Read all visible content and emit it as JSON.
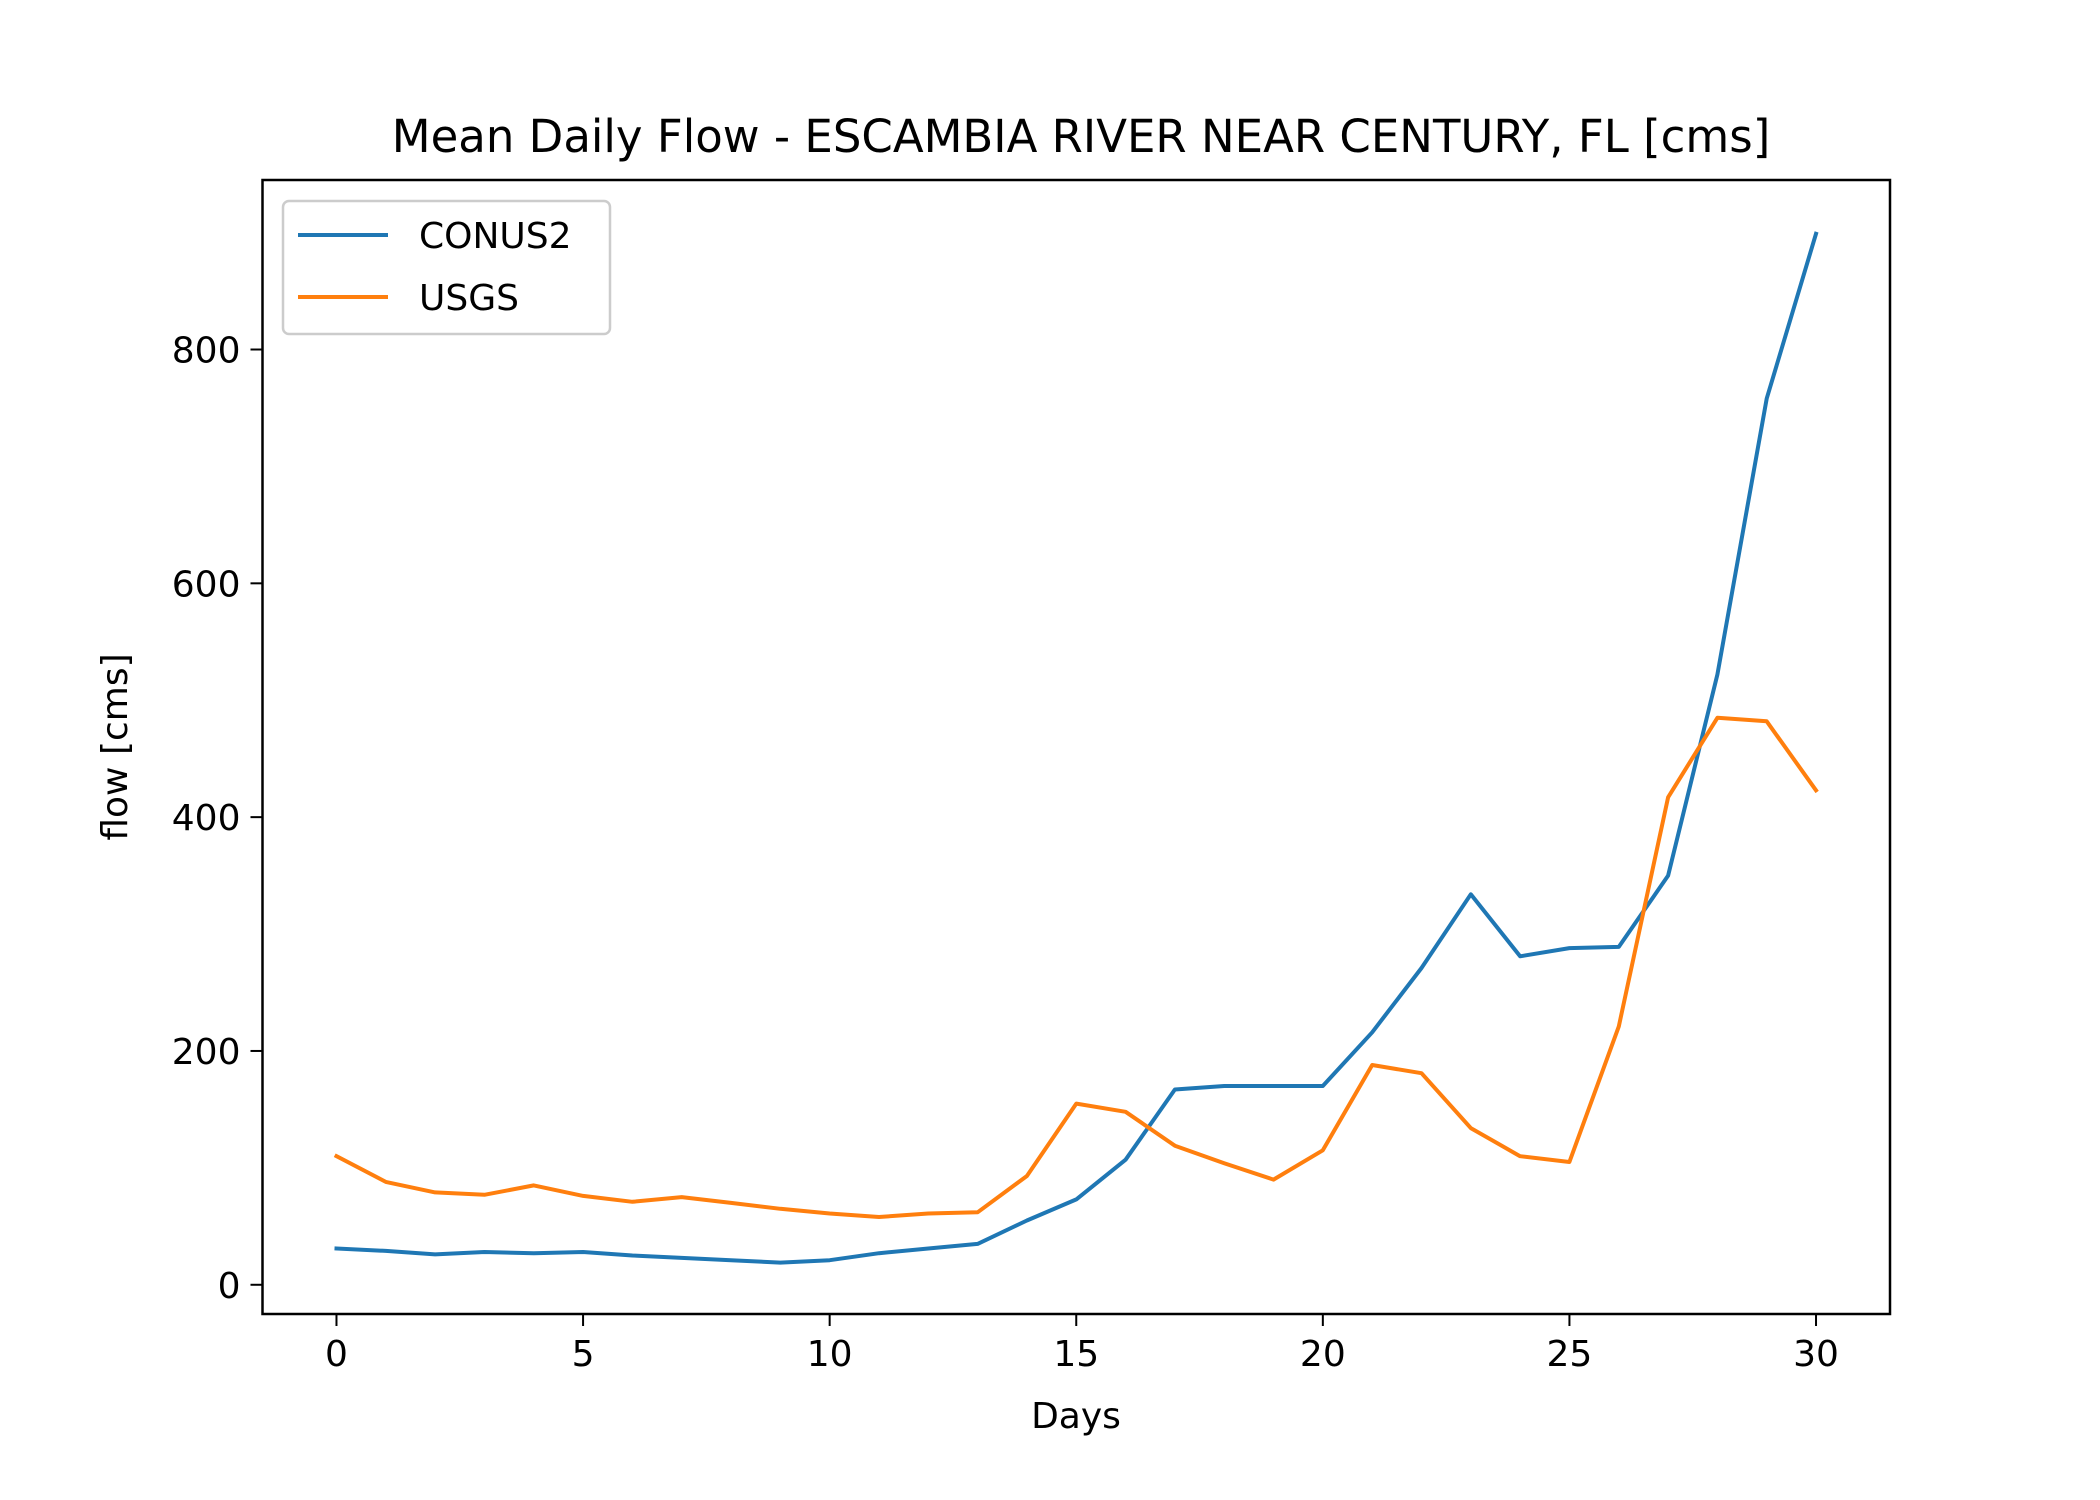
{
  "chart_data": {
    "type": "line",
    "title": "Mean Daily Flow - ESCAMBIA RIVER NEAR CENTURY, FL [cms]",
    "xlabel": "Days",
    "ylabel": "flow [cms]",
    "xlim": [
      -1.5,
      31.5
    ],
    "ylim": [
      -25,
      945
    ],
    "xticks": [
      0,
      5,
      10,
      15,
      20,
      25,
      30
    ],
    "yticks": [
      0,
      200,
      400,
      600,
      800
    ],
    "grid": false,
    "legend_position": "top-left",
    "x": [
      0,
      1,
      2,
      3,
      4,
      5,
      6,
      7,
      8,
      9,
      10,
      11,
      12,
      13,
      14,
      15,
      16,
      17,
      18,
      19,
      20,
      21,
      22,
      23,
      24,
      25,
      26,
      27,
      28,
      29,
      30
    ],
    "series": [
      {
        "name": "CONUS2",
        "color": "#1f77b4",
        "values": [
          31,
          29,
          26,
          28,
          27,
          28,
          25,
          23,
          21,
          19,
          21,
          27,
          31,
          35,
          55,
          73,
          107,
          167,
          170,
          170,
          170,
          216,
          271,
          334,
          281,
          288,
          289,
          350,
          522,
          758,
          899
        ]
      },
      {
        "name": "USGS",
        "color": "#ff7f0e",
        "values": [
          110,
          88,
          79,
          77,
          85,
          76,
          71,
          75,
          70,
          65,
          61,
          58,
          61,
          62,
          93,
          155,
          148,
          119,
          104,
          90,
          115,
          188,
          181,
          134,
          110,
          105,
          221,
          417,
          485,
          482,
          423
        ]
      }
    ]
  }
}
